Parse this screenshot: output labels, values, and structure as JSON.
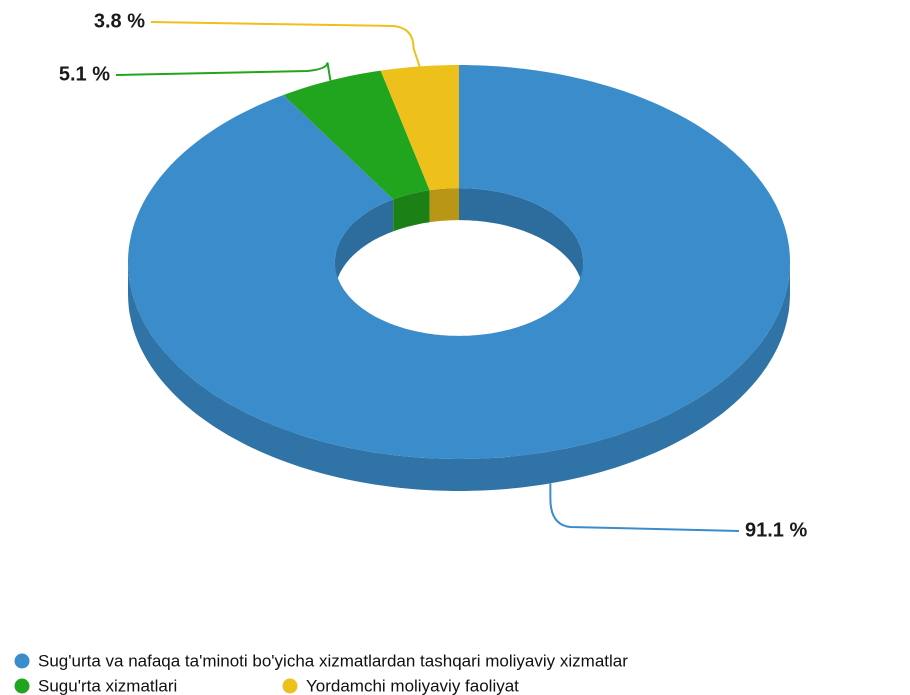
{
  "chart_data": {
    "type": "pie",
    "categories": [
      "Sug'urta va nafaqa ta'minoti bo'yicha xizmatlardan tashqari moliyaviy xizmatlar",
      "Sugu'rta xizmatlari",
      "Yordamchi moliyaviy faoliyat"
    ],
    "values": [
      91.1,
      5.1,
      3.8
    ],
    "value_labels": [
      "91.1 %",
      "5.1 %",
      "3.8 %"
    ],
    "colors": [
      "#3a8ccb",
      "#22a51e",
      "#edc01c"
    ],
    "donut": true,
    "legend": "bottom"
  }
}
